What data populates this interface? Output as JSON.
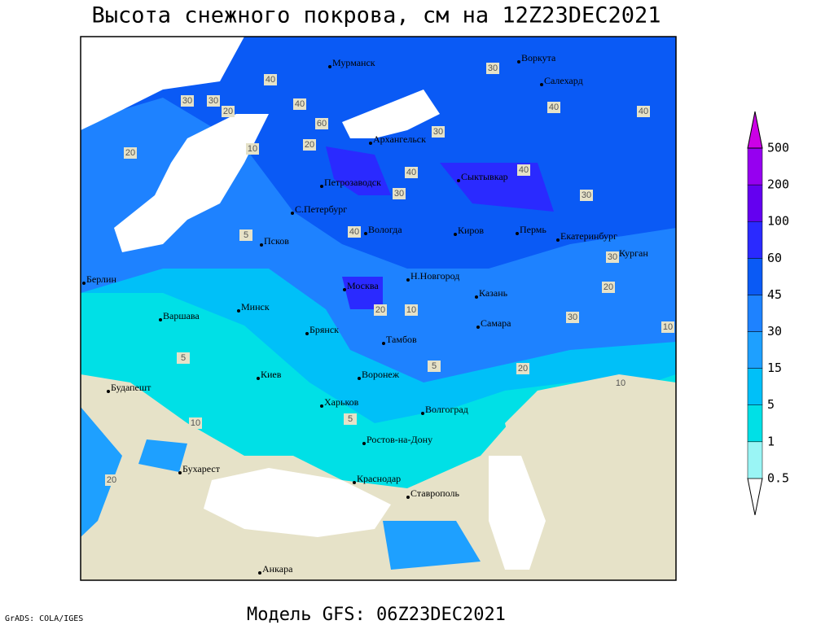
{
  "title": "Высота снежного покрова, см на 12Z23DEC2021",
  "footer": "Модель GFS: 06Z23DEC2021",
  "credit": "GrADS: COLA/IGES",
  "cities": [
    "Мурманск",
    "Воркута",
    "Салехард",
    "Архангельск",
    "Петрозаводск",
    "Сыктывкар",
    "С.Петербург",
    "Вологда",
    "Киров",
    "Пермь",
    "Екатеринбург",
    "Курган",
    "Псков",
    "Н.Новгород",
    "Москва",
    "Казань",
    "Берлин",
    "Варшава",
    "Минск",
    "Брянск",
    "Тамбов",
    "Самара",
    "Киев",
    "Воронеж",
    "Будапешт",
    "Харьков",
    "Волгоград",
    "Ростов-на-Дону",
    "Бухарест",
    "Краснодар",
    "Ставрополь",
    "Анкара"
  ],
  "contour_labels": [
    "40",
    "30",
    "30",
    "20",
    "40",
    "30",
    "40",
    "60",
    "20",
    "10",
    "20",
    "30",
    "40",
    "30",
    "40",
    "30",
    "40",
    "5",
    "20",
    "10",
    "5",
    "20",
    "10",
    "5",
    "10",
    "20",
    "30",
    "20",
    "30",
    "5",
    "40",
    "10"
  ],
  "legend": {
    "levels": [
      0.5,
      1,
      5,
      15,
      30,
      45,
      60,
      100,
      200,
      500
    ],
    "colors": [
      "#ffffff",
      "#9af5f5",
      "#00e0e6",
      "#00c0f8",
      "#1ea0ff",
      "#1e82ff",
      "#0a5af5",
      "#2a2aff",
      "#6400f0",
      "#9600f0",
      "#cc00e6"
    ]
  }
}
